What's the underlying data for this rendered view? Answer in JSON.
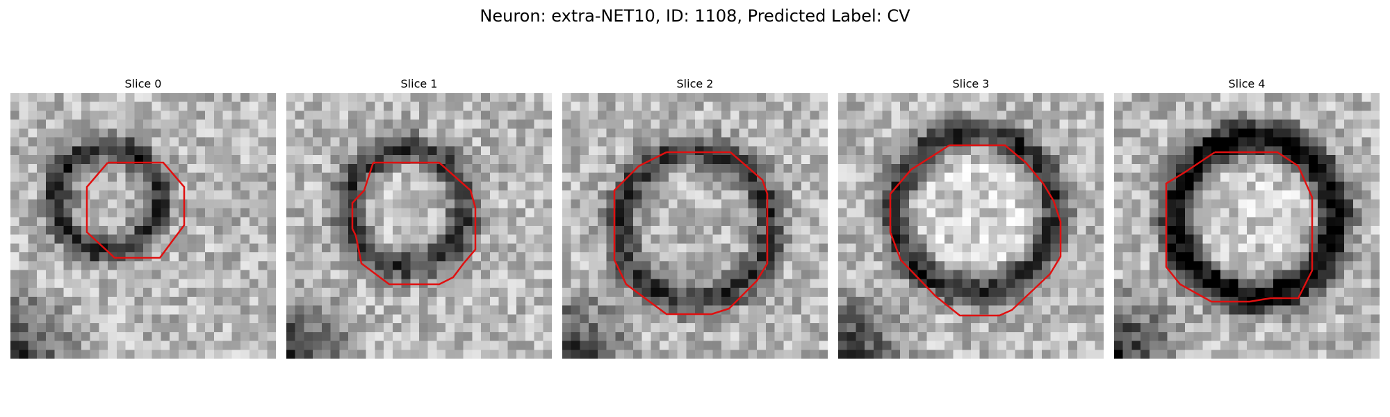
{
  "figure": {
    "title": "Neuron: extra-NET10, ID: 1108, Predicted Label: CV"
  },
  "panels": [
    {
      "title": "Slice 0",
      "outline_color": "#e01010",
      "image_desc_name": "slice-0-image"
    },
    {
      "title": "Slice 1",
      "outline_color": "#e01010",
      "image_desc_name": "slice-1-image"
    },
    {
      "title": "Slice 2",
      "outline_color": "#e01010",
      "image_desc_name": "slice-2-image"
    },
    {
      "title": "Slice 3",
      "outline_color": "#e01010",
      "image_desc_name": "slice-3-image"
    },
    {
      "title": "Slice 4",
      "outline_color": "#e01010",
      "image_desc_name": "slice-4-image"
    }
  ]
}
